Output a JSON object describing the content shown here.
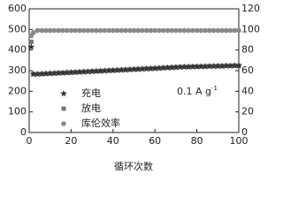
{
  "chart_data": {
    "type": "scatter",
    "xlabel": "循环次数",
    "annotation": "0.1 A g",
    "annotation_sup": "-1",
    "x": [
      1,
      2,
      4,
      6,
      8,
      10,
      12,
      14,
      16,
      18,
      20,
      22,
      24,
      26,
      28,
      30,
      32,
      34,
      36,
      38,
      40,
      42,
      44,
      46,
      48,
      50,
      52,
      54,
      56,
      58,
      60,
      62,
      64,
      66,
      68,
      70,
      72,
      74,
      76,
      78,
      80,
      82,
      84,
      86,
      88,
      90,
      92,
      94,
      96,
      98,
      100
    ],
    "series": [
      {
        "name": "充电",
        "marker": "star",
        "color": "#333333",
        "values": [
          415,
          283,
          283,
          284,
          285,
          286,
          287,
          288,
          289,
          290,
          291,
          292,
          293,
          294,
          295,
          296,
          297,
          298,
          299,
          300,
          301,
          302,
          303,
          304,
          305,
          306,
          307,
          308,
          309,
          310,
          311,
          312,
          313,
          314,
          315,
          316,
          317,
          318,
          318,
          319,
          319,
          320,
          320,
          321,
          321,
          322,
          322,
          323,
          323,
          324,
          324
        ]
      },
      {
        "name": "放电",
        "marker": "square",
        "color": "#777777",
        "values": [
          440,
          284,
          284,
          285,
          286,
          287,
          288,
          289,
          290,
          291,
          292,
          293,
          294,
          295,
          296,
          297,
          298,
          299,
          300,
          301,
          302,
          303,
          304,
          305,
          306,
          307,
          308,
          309,
          310,
          311,
          312,
          313,
          314,
          315,
          316,
          317,
          318,
          319,
          319,
          320,
          320,
          321,
          321,
          322,
          322,
          323,
          323,
          324,
          324,
          325,
          325
        ]
      },
      {
        "name": "库伦效率",
        "marker": "circle",
        "color": "#888888",
        "axis": "y2",
        "values": [
          94,
          97,
          99,
          99,
          99,
          99,
          99,
          99,
          99,
          99,
          99,
          99,
          99,
          99,
          99,
          99,
          99,
          99,
          99,
          99,
          99,
          99,
          99,
          99,
          99,
          99,
          99,
          99,
          99,
          99,
          99,
          99,
          99,
          99,
          99,
          99,
          99,
          99,
          99,
          99,
          99,
          99,
          99,
          99,
          99,
          99,
          99,
          99,
          99,
          99,
          99
        ]
      }
    ],
    "xlim": [
      0,
      100
    ],
    "xticks": [
      0,
      20,
      40,
      60,
      80,
      100
    ],
    "ylim": [
      0,
      600
    ],
    "yticks": [
      0,
      100,
      200,
      300,
      400,
      500,
      600
    ],
    "y2lim": [
      0,
      120
    ],
    "y2ticks": [
      0,
      20,
      40,
      60,
      80,
      100,
      120
    ]
  }
}
